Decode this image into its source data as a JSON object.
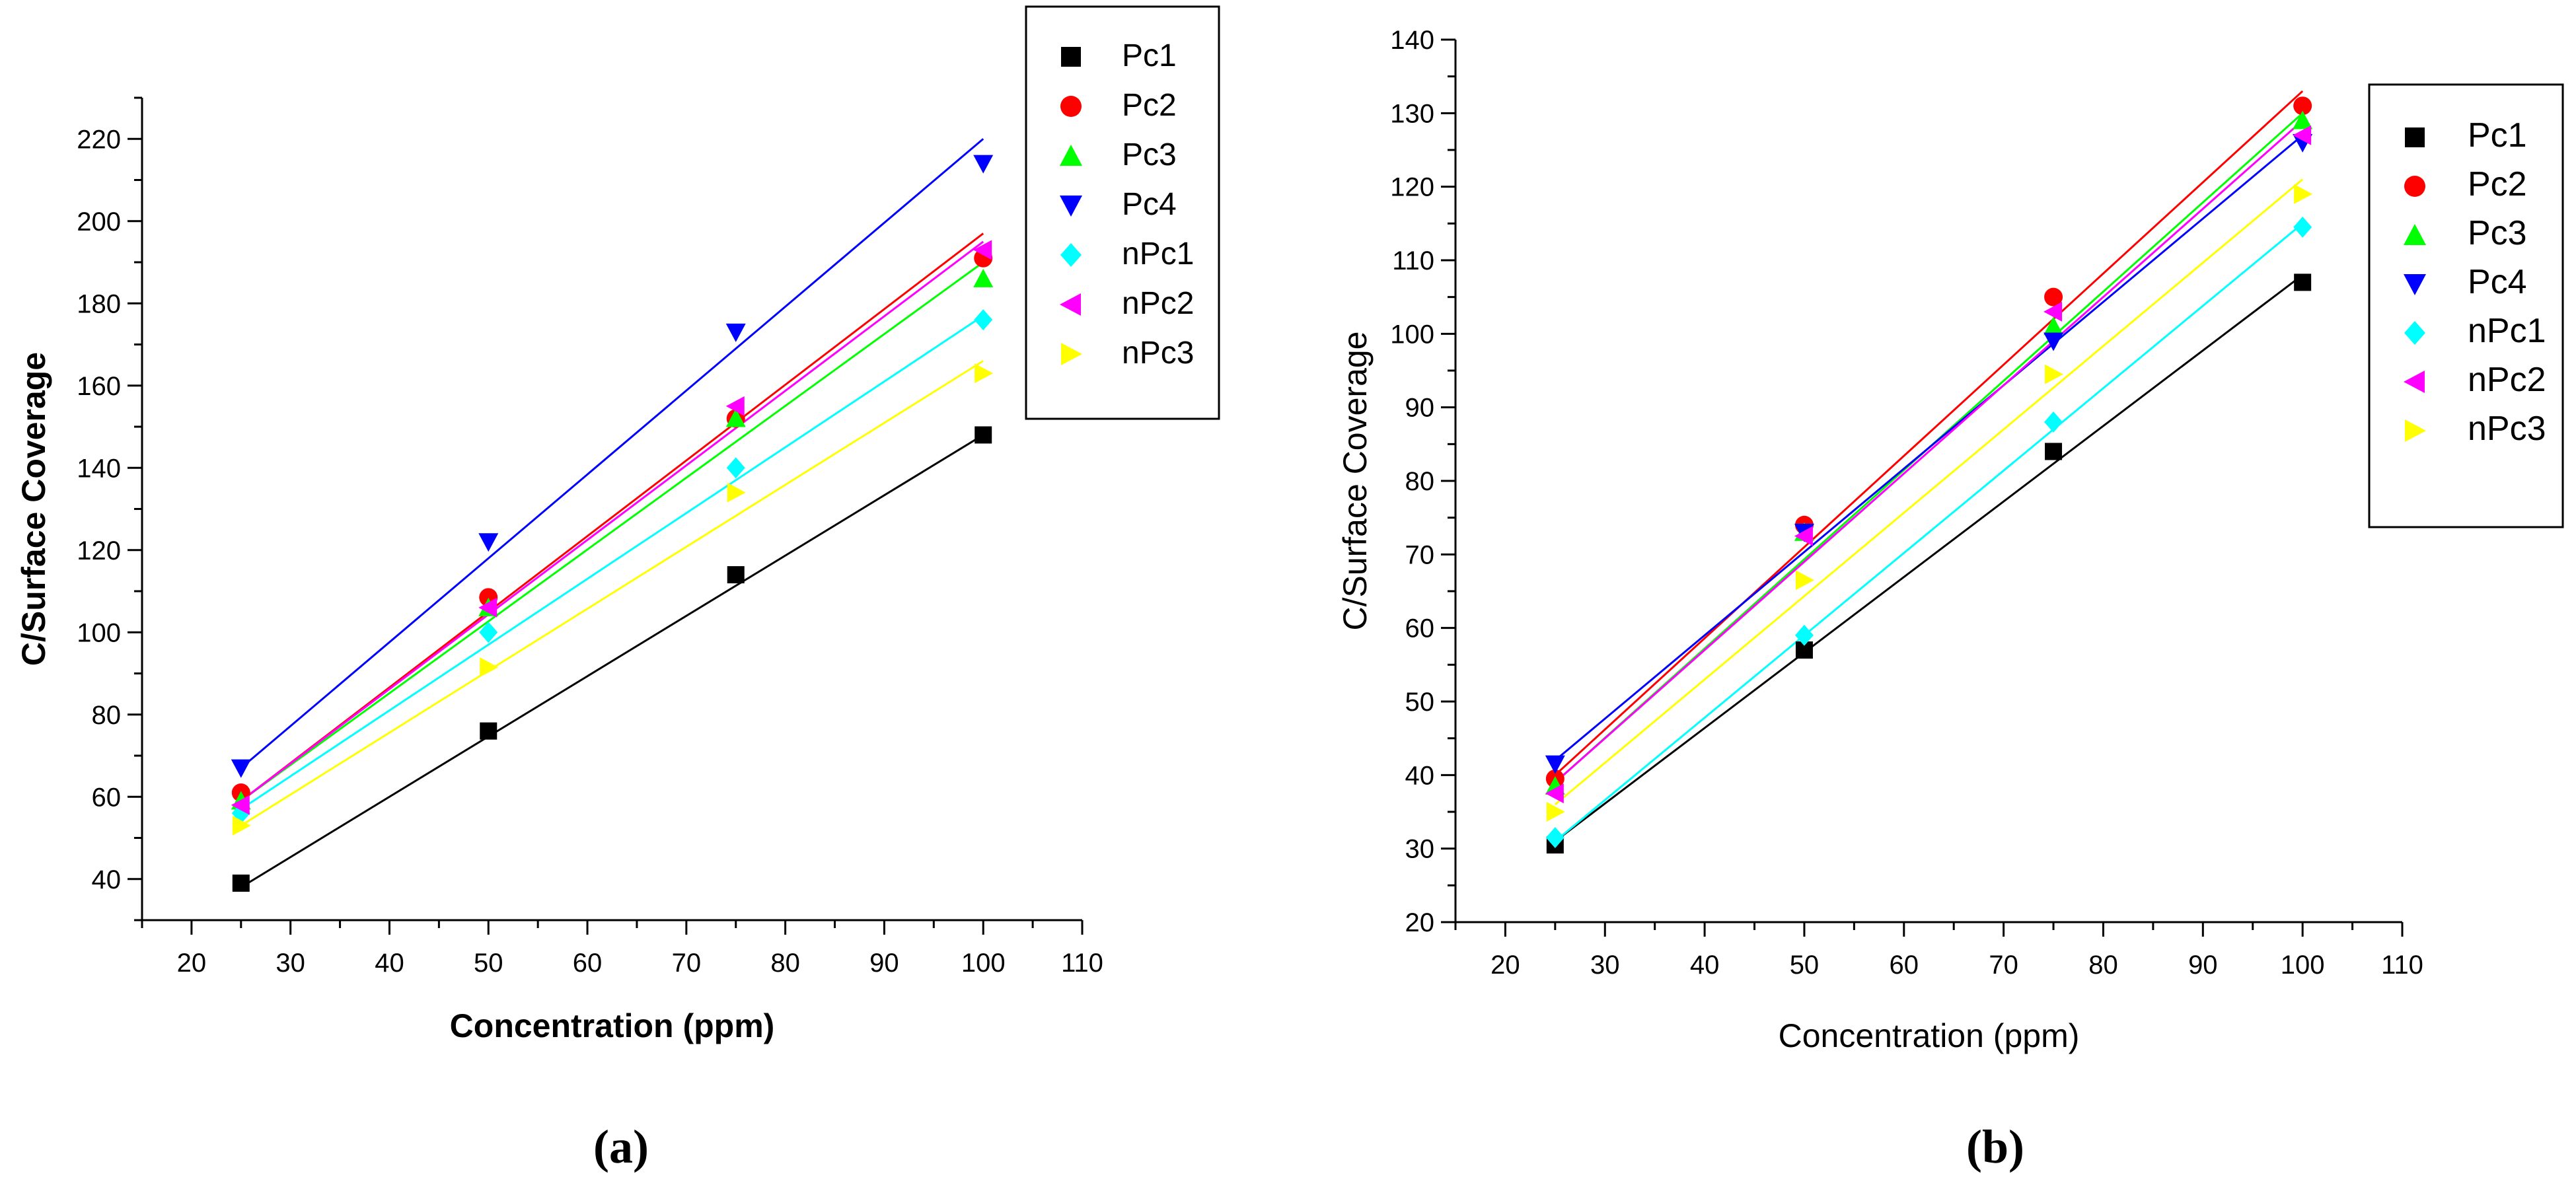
{
  "chart_data": [
    {
      "id": "a",
      "type": "scatter",
      "panel_label": "(a)",
      "title": "",
      "xlabel": "Concentration (ppm)",
      "ylabel": "C/Surface Coverage",
      "xlim": [
        15,
        110
      ],
      "ylim": [
        30,
        230
      ],
      "xticks": [
        20,
        30,
        40,
        50,
        60,
        70,
        80,
        90,
        100,
        110
      ],
      "yticks": [
        40,
        60,
        80,
        100,
        120,
        140,
        160,
        180,
        200,
        220
      ],
      "x": [
        25,
        50,
        75,
        100
      ],
      "legend_position": "top-right",
      "series": [
        {
          "name": "Pc1",
          "color": "#000000",
          "marker": "square",
          "values": [
            39,
            76,
            114,
            148
          ],
          "fit": [
            25,
            38,
            100,
            148
          ]
        },
        {
          "name": "Pc2",
          "color": "#ff0000",
          "marker": "circle",
          "values": [
            61,
            108.5,
            152,
            191
          ],
          "fit": [
            25,
            59,
            100,
            197
          ]
        },
        {
          "name": "Pc3",
          "color": "#00ff00",
          "marker": "triangle-up",
          "values": [
            59,
            106,
            152,
            186
          ],
          "fit": [
            25,
            59,
            100,
            190
          ]
        },
        {
          "name": "Pc4",
          "color": "#0000ff",
          "marker": "triangle-down",
          "values": [
            67,
            122,
            173,
            214
          ],
          "fit": [
            25,
            67,
            100,
            220
          ]
        },
        {
          "name": "nPc1",
          "color": "#00ffff",
          "marker": "diamond",
          "values": [
            56,
            100,
            140,
            176
          ],
          "fit": [
            25,
            57,
            100,
            177
          ]
        },
        {
          "name": "nPc2",
          "color": "#ff00ff",
          "marker": "triangle-left",
          "values": [
            58,
            106,
            155,
            193
          ],
          "fit": [
            25,
            59,
            100,
            195
          ]
        },
        {
          "name": "nPc3",
          "color": "#ffff00",
          "marker": "triangle-right",
          "values": [
            53,
            91.5,
            134,
            163
          ],
          "fit": [
            25,
            53,
            100,
            166
          ]
        }
      ]
    },
    {
      "id": "b",
      "type": "scatter",
      "panel_label": "(b)",
      "title": "",
      "xlabel": "Concentration (ppm)",
      "ylabel": "C/Surface Coverage",
      "xlim": [
        15,
        110
      ],
      "ylim": [
        20,
        140
      ],
      "xticks": [
        20,
        30,
        40,
        50,
        60,
        70,
        80,
        90,
        100,
        110
      ],
      "yticks": [
        20,
        30,
        40,
        50,
        60,
        70,
        80,
        90,
        100,
        110,
        120,
        130,
        140
      ],
      "x": [
        25,
        50,
        75,
        100
      ],
      "legend_position": "top-right",
      "series": [
        {
          "name": "Pc1",
          "color": "#000000",
          "marker": "square",
          "values": [
            30.5,
            57,
            84,
            107
          ],
          "fit": [
            25,
            31,
            100,
            108
          ]
        },
        {
          "name": "Pc2",
          "color": "#ff0000",
          "marker": "circle",
          "values": [
            39.5,
            74,
            105,
            131
          ],
          "fit": [
            25,
            40,
            100,
            133
          ]
        },
        {
          "name": "Pc3",
          "color": "#00ff00",
          "marker": "triangle-up",
          "values": [
            38.5,
            73,
            101,
            129
          ],
          "fit": [
            25,
            39,
            100,
            130
          ]
        },
        {
          "name": "Pc4",
          "color": "#0000ff",
          "marker": "triangle-down",
          "values": [
            41.5,
            73,
            99,
            126
          ],
          "fit": [
            25,
            42,
            100,
            127
          ]
        },
        {
          "name": "nPc1",
          "color": "#00ffff",
          "marker": "diamond",
          "values": [
            31.5,
            59,
            88,
            114.5
          ],
          "fit": [
            25,
            31,
            100,
            115
          ]
        },
        {
          "name": "nPc2",
          "color": "#ff00ff",
          "marker": "triangle-left",
          "values": [
            37.5,
            72.5,
            103,
            127
          ],
          "fit": [
            25,
            39,
            100,
            129
          ]
        },
        {
          "name": "nPc3",
          "color": "#ffff00",
          "marker": "triangle-right",
          "values": [
            35,
            66.5,
            94.5,
            119
          ],
          "fit": [
            25,
            36,
            100,
            121
          ]
        }
      ]
    }
  ]
}
